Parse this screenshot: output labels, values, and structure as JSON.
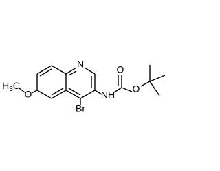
{
  "atoms": {
    "ring_n": "N",
    "bromine": "Br",
    "amine": "NH",
    "carbonyl_o": "O",
    "ester_o": "O",
    "methoxy_o": "O",
    "methyl": {
      "h": "H",
      "sub": "3",
      "c": "C"
    }
  }
}
